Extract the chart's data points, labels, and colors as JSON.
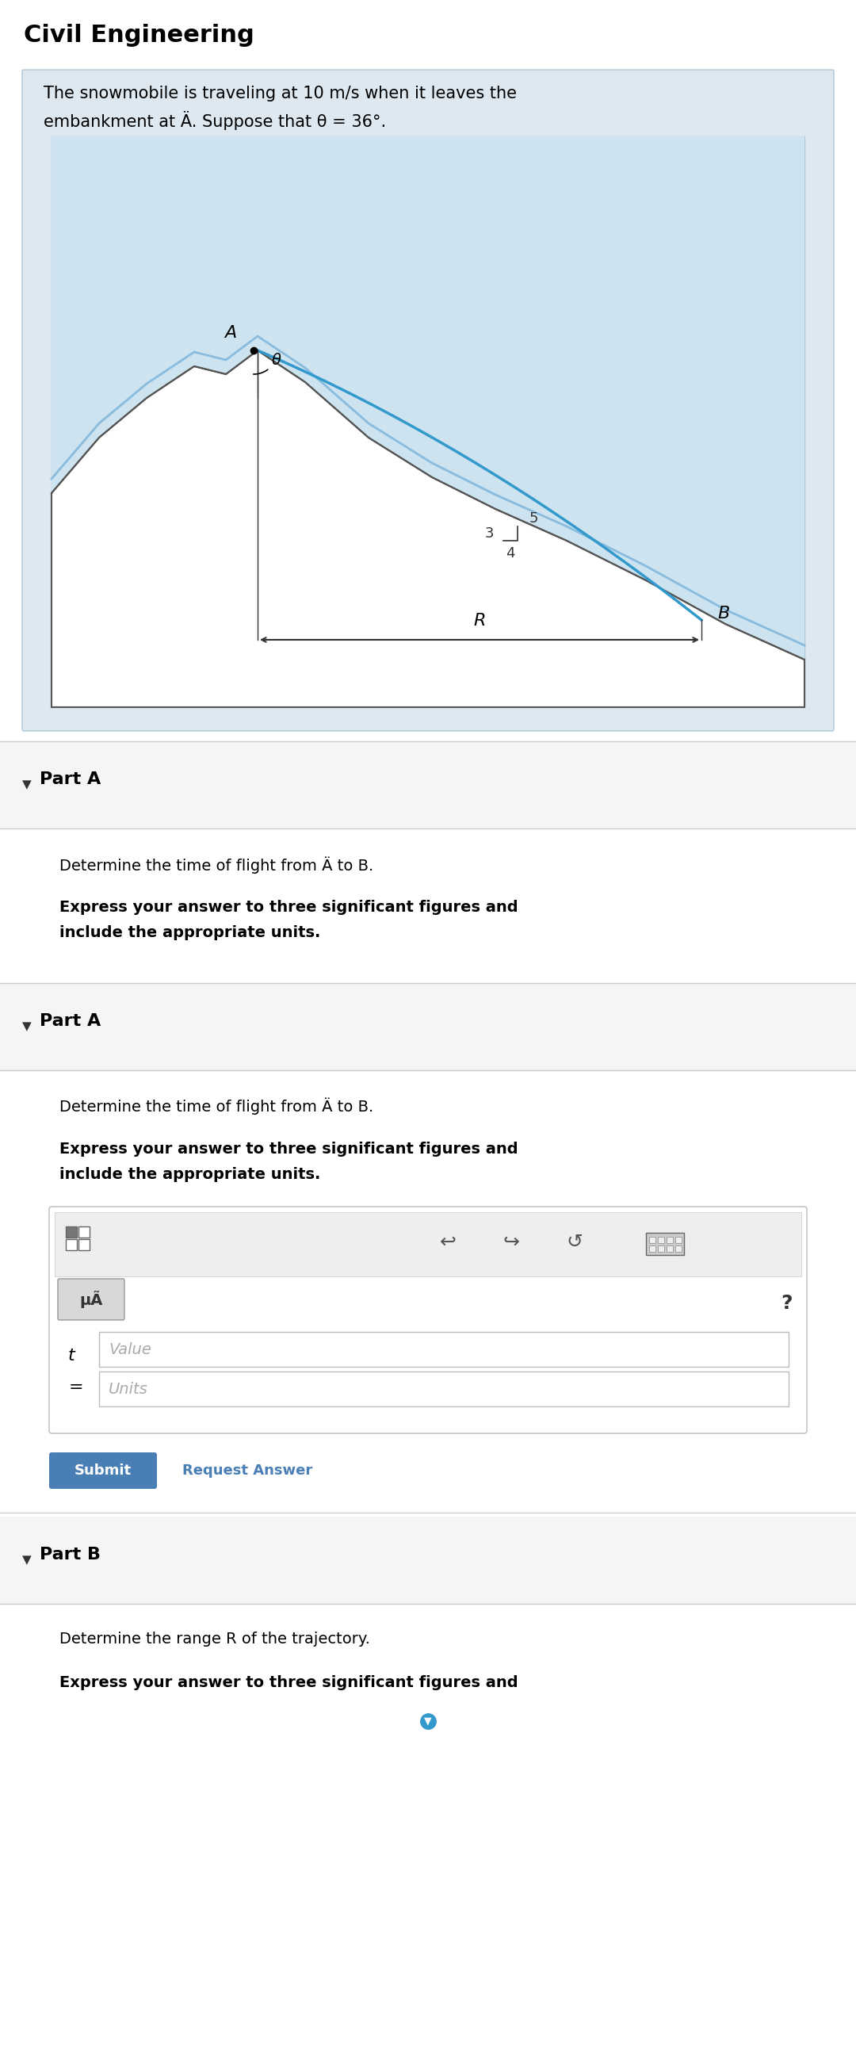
{
  "title": "Civil Engineering",
  "title_fontsize": 22,
  "title_color": "#000000",
  "bg_color": "#ffffff",
  "card_bg": "#dde8f0",
  "inner_card_bg": "#ffffff",
  "problem_text_line1": "The snowmobile is traveling at 10 m/s when it leaves the",
  "problem_text_line2": "embankment at Ä. Suppose that θ = 36°.",
  "section1_header": "Part A",
  "section1_desc1": "Determine the time of flight from Ä to B.",
  "section1_bold1": "Express your answer to three significant figures and",
  "section1_bold2": "include the appropriate units.",
  "section2_header": "Part A",
  "section2_desc1": "Determine the time of flight from Ä to B.",
  "section2_bold1": "Express your answer to three significant figures and",
  "section2_bold2": "include the appropriate units.",
  "value_placeholder": "Value",
  "units_placeholder": "Units",
  "submit_btn_color": "#4a7fb5",
  "submit_btn_text": "Submit",
  "request_answer_text": "Request Answer",
  "section3_header": "Part B",
  "section3_desc1": "Determine the range R of the trajectory.",
  "section3_bold1": "Express your answer to three significant figures and",
  "divider_color": "#cccccc",
  "body_font_size": 14,
  "bold_font_size": 14,
  "header_font_size": 16
}
